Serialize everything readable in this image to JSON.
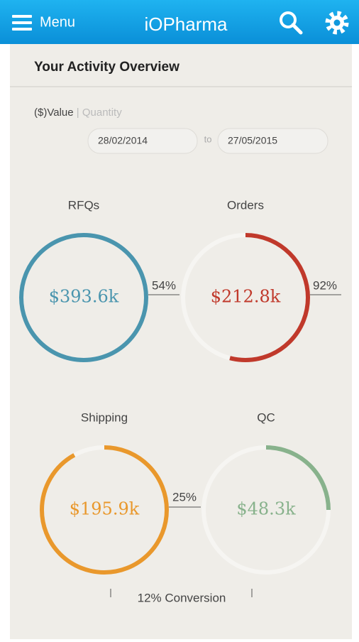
{
  "header": {
    "menu": "Menu",
    "logo": "iOPharma"
  },
  "overview": {
    "title": "Your Activity Overview",
    "toggle": {
      "value": "($)Value",
      "separator": "|",
      "quantity": "Quantity"
    },
    "date_from": "28/02/2014",
    "date_to_label": "to",
    "date_to": "27/05/2015"
  },
  "stages": [
    {
      "label": "RFQs",
      "amount": "$393.6k",
      "color": "#4a95ae"
    },
    {
      "label": "Orders",
      "amount": "$212.8k",
      "color": "#c0392b"
    },
    {
      "label": "Shipping",
      "amount": "$195.9k",
      "color": "#e9982c"
    },
    {
      "label": "QC",
      "amount": "$48.3k",
      "color": "#88b28c"
    }
  ],
  "conversions": [
    "54%",
    "92%",
    "25%"
  ],
  "total_conversion": "12% Conversion"
}
